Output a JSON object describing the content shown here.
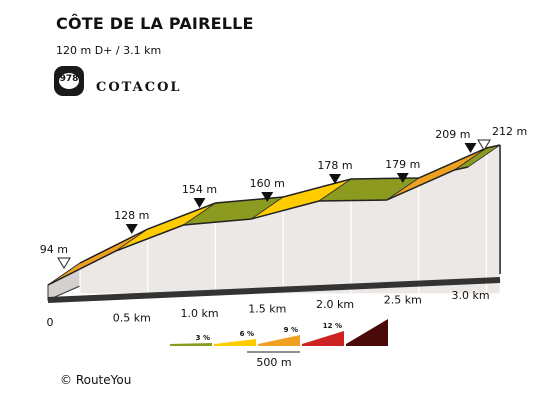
{
  "header": {
    "title": "CÔTE DE LA PAIRELLE",
    "subtitle": "120 m D+ / 3.1 km",
    "badge_number": "978",
    "brand": "COTACOL"
  },
  "footer": {
    "copyright": "© RouteYou"
  },
  "colors": {
    "grade_3": "#8c9a1f",
    "grade_6": "#ffcc00",
    "grade_9": "#f0a020",
    "grade_12": "#cc2222",
    "grade_max": "#4a0a0a",
    "side_face": "#e8e4e2",
    "front_face": "#d4d0ce",
    "base_top": "#333333"
  },
  "chart_data": {
    "type": "area",
    "title": "CÔTE DE LA PAIRELLE",
    "xlabel": "",
    "ylabel": "",
    "xunit": "km",
    "yunit": "m",
    "xlim": [
      0,
      3.1
    ],
    "x_ticks": [
      {
        "value": 0,
        "label": "0"
      },
      {
        "value": 0.5,
        "label": "0.5 km"
      },
      {
        "value": 1.0,
        "label": "1.0 km"
      },
      {
        "value": 1.5,
        "label": "1.5 km"
      },
      {
        "value": 2.0,
        "label": "2.0 km"
      },
      {
        "value": 2.5,
        "label": "2.5 km"
      },
      {
        "value": 3.0,
        "label": "3.0 km"
      }
    ],
    "points": [
      {
        "x": 0.0,
        "y": 94,
        "label": "94 m",
        "marker": "open"
      },
      {
        "x": 0.5,
        "y": 128,
        "label": "128 m",
        "marker": "filled"
      },
      {
        "x": 1.0,
        "y": 154,
        "label": "154 m",
        "marker": "filled"
      },
      {
        "x": 1.5,
        "y": 160,
        "label": "160 m",
        "marker": "filled"
      },
      {
        "x": 2.0,
        "y": 178,
        "label": "178 m",
        "marker": "filled"
      },
      {
        "x": 2.5,
        "y": 179,
        "label": "179 m",
        "marker": "filled"
      },
      {
        "x": 3.0,
        "y": 209,
        "label": "209 m",
        "marker": "filled"
      },
      {
        "x": 3.1,
        "y": 212,
        "label": "212 m",
        "marker": "open"
      }
    ],
    "segment_grades": [
      "grade_9",
      "grade_6",
      "grade_3",
      "grade_6",
      "grade_3",
      "grade_9",
      "grade_3"
    ],
    "legend": {
      "items": [
        {
          "label": "3 %",
          "color": "grade_3"
        },
        {
          "label": "6 %",
          "color": "grade_6"
        },
        {
          "label": "9 %",
          "color": "grade_9"
        },
        {
          "label": "12 %",
          "color": "grade_12"
        },
        {
          "label": "",
          "color": "grade_max"
        }
      ],
      "scale_label": "500 m",
      "position": "bottom-center"
    }
  }
}
